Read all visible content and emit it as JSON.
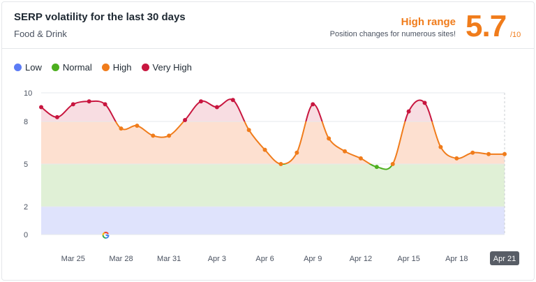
{
  "header": {
    "title": "SERP volatility for the last 30 days",
    "category": "Food & Drink",
    "range_title": "High range",
    "range_desc": "Position changes for numerous sites!",
    "score": "5.7",
    "score_max": "/10"
  },
  "legend": [
    {
      "label": "Low",
      "color": "#5c7cf5"
    },
    {
      "label": "Normal",
      "color": "#4caf1e"
    },
    {
      "label": "High",
      "color": "#f07c1b"
    },
    {
      "label": "Very High",
      "color": "#c8163f"
    }
  ],
  "chart_data": {
    "type": "line",
    "x": [
      "Mar 23",
      "Mar 24",
      "Mar 25",
      "Mar 26",
      "Mar 27",
      "Mar 28",
      "Mar 29",
      "Mar 30",
      "Mar 31",
      "Apr 1",
      "Apr 2",
      "Apr 3",
      "Apr 4",
      "Apr 5",
      "Apr 6",
      "Apr 7",
      "Apr 8",
      "Apr 9",
      "Apr 10",
      "Apr 11",
      "Apr 12",
      "Apr 13",
      "Apr 14",
      "Apr 15",
      "Apr 16",
      "Apr 17",
      "Apr 18",
      "Apr 19",
      "Apr 20",
      "Apr 21"
    ],
    "values": [
      9.0,
      8.3,
      9.2,
      9.4,
      9.2,
      7.5,
      7.7,
      7.0,
      7.0,
      8.1,
      9.4,
      9.0,
      9.5,
      7.4,
      6.0,
      5.0,
      5.8,
      9.2,
      6.8,
      5.9,
      5.4,
      4.8,
      5.0,
      8.7,
      9.3,
      6.2,
      5.4,
      5.8,
      5.7,
      5.7
    ],
    "xticks": [
      "Mar 25",
      "Mar 28",
      "Mar 31",
      "Apr 3",
      "Apr 6",
      "Apr 9",
      "Apr 12",
      "Apr 15",
      "Apr 18",
      "Apr 21"
    ],
    "yticks": [
      "0",
      "2",
      "5",
      "8",
      "10"
    ],
    "ylim": [
      0,
      10
    ],
    "bands": [
      {
        "name": "Low",
        "from": 0,
        "to": 2,
        "fill": "#dfe3fc"
      },
      {
        "name": "Normal",
        "from": 2,
        "to": 5,
        "fill": "#e0f0d6"
      },
      {
        "name": "High",
        "from": 5,
        "to": 8,
        "fill": "#fde0d0"
      },
      {
        "name": "Very High",
        "from": 8,
        "to": 10,
        "fill": "#f8dde2"
      }
    ],
    "highlighted_tick": "Apr 21",
    "marker_icon": "google-g-icon",
    "marker_date": "Mar 27"
  }
}
